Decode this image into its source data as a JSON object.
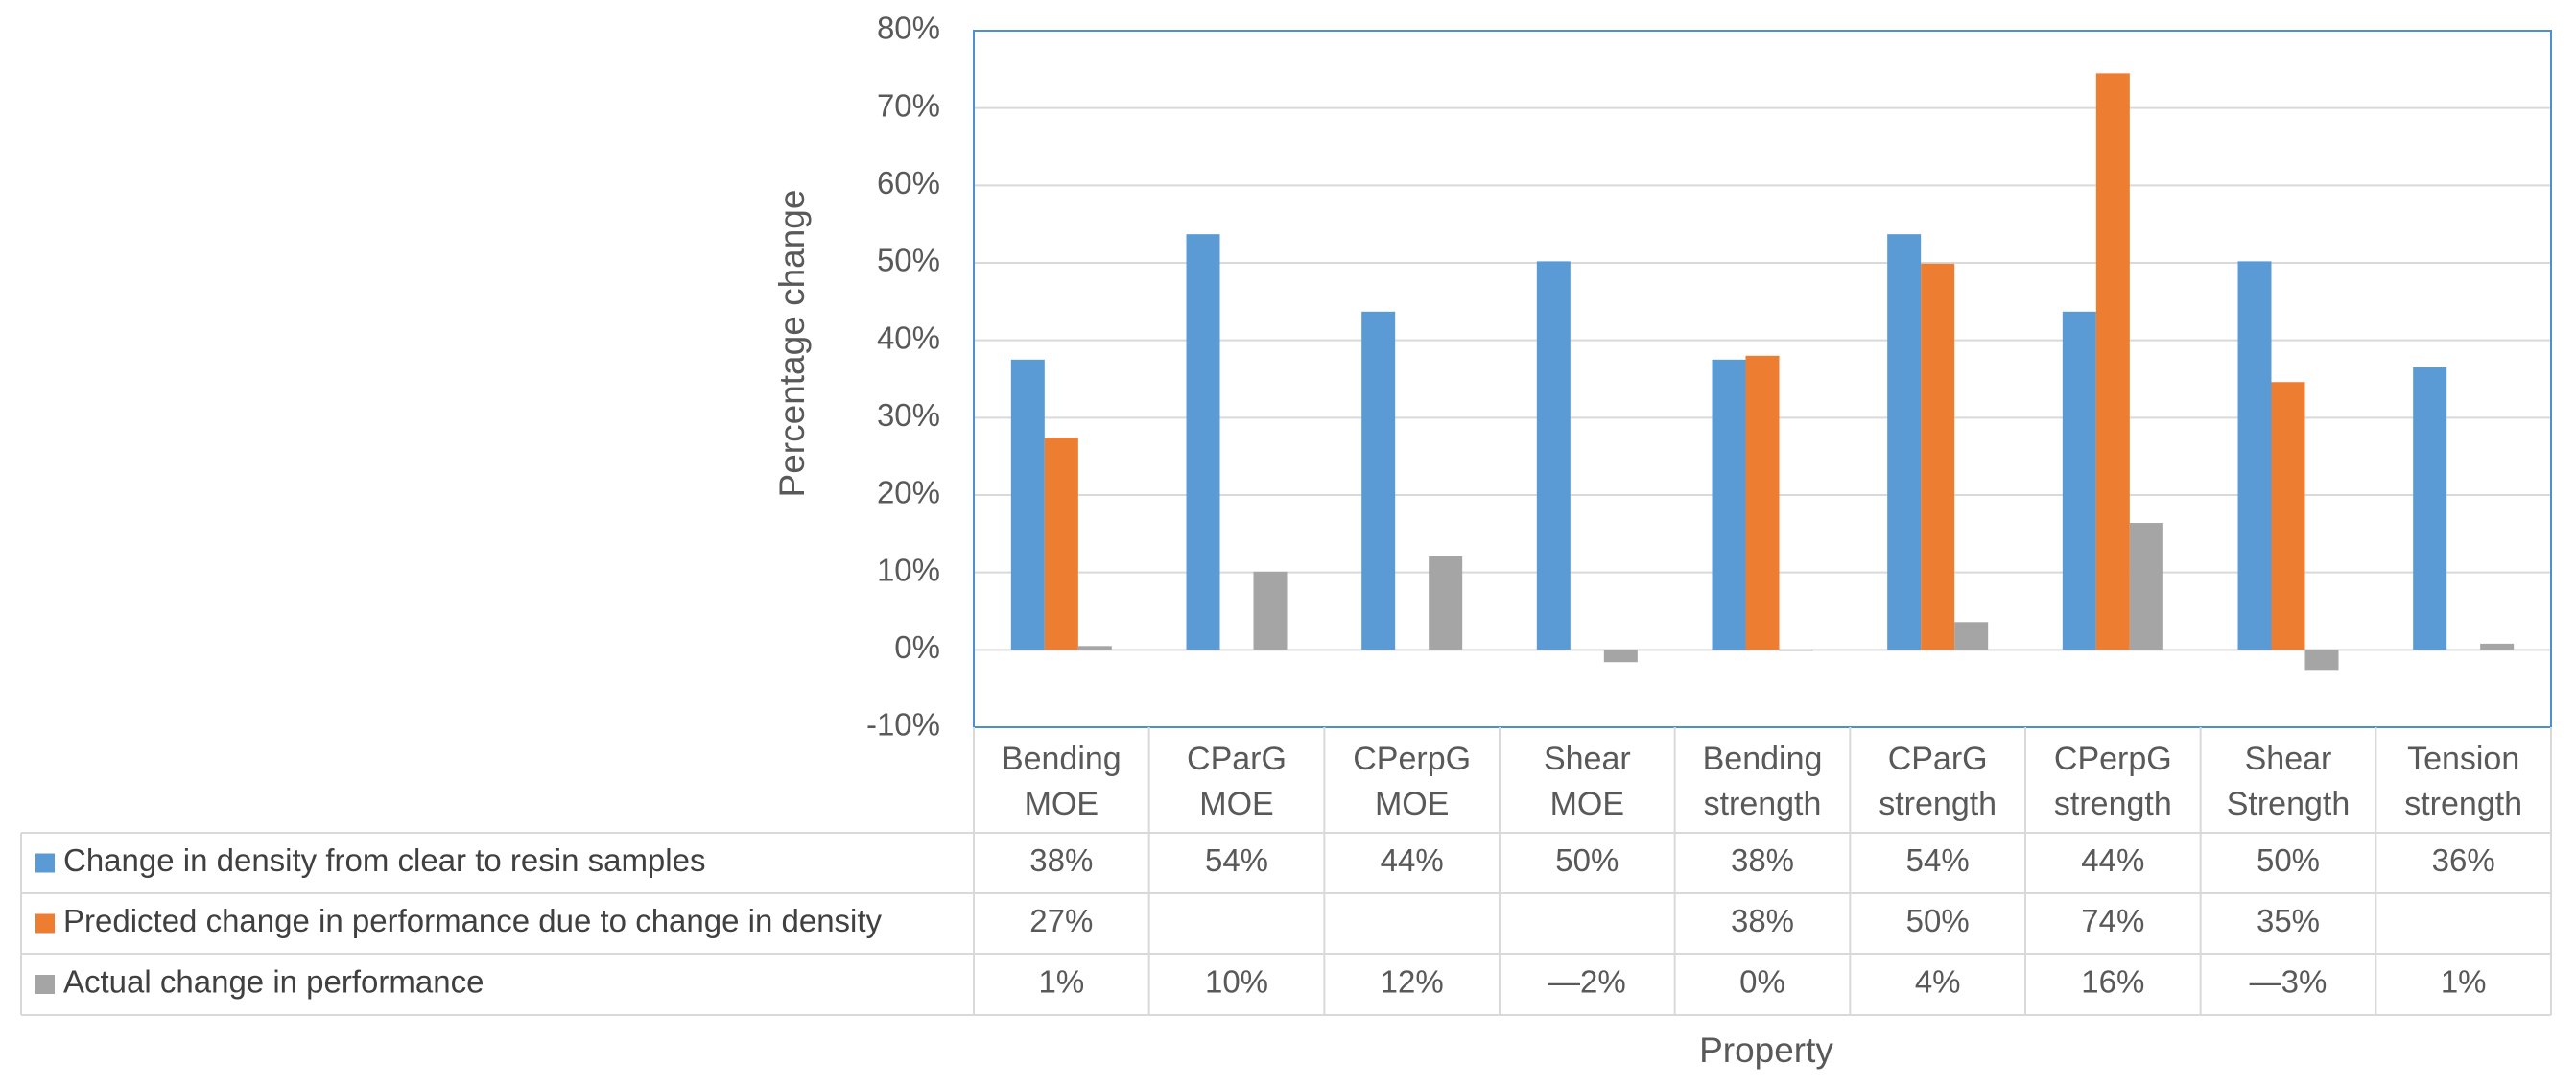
{
  "chart_data": {
    "type": "bar",
    "xlabel": "Property",
    "ylabel": "Percentage change",
    "ylim": [
      -10,
      80
    ],
    "ytick_step": 10,
    "grid": true,
    "legend": "data-table-left",
    "categories": [
      [
        "Bending",
        "MOE"
      ],
      [
        "CParG",
        "MOE"
      ],
      [
        "CPerpG",
        "MOE"
      ],
      [
        "Shear",
        "MOE"
      ],
      [
        "Bending",
        "strength"
      ],
      [
        "CParG",
        "strength"
      ],
      [
        "CPerpG",
        "strength"
      ],
      [
        "Shear",
        "Strength"
      ],
      [
        "Tension",
        "strength"
      ]
    ],
    "series": [
      {
        "name": "Change in density from clear to resin samples",
        "color": "#5B9BD5",
        "values": [
          37.5,
          53.7,
          43.7,
          50.2,
          37.5,
          53.7,
          43.7,
          50.2,
          36.5
        ],
        "labels": [
          "38%",
          "54%",
          "44%",
          "50%",
          "38%",
          "54%",
          "44%",
          "50%",
          "36%"
        ]
      },
      {
        "name": "Predicted change in performance due to change in density",
        "color": "#ED7D31",
        "values": [
          27.4,
          null,
          null,
          null,
          38.0,
          49.9,
          74.5,
          34.6,
          null
        ],
        "labels": [
          "27%",
          "",
          "",
          "",
          "38%",
          "50%",
          "74%",
          "35%",
          ""
        ]
      },
      {
        "name": "Actual change in performance",
        "color": "#A5A5A5",
        "values": [
          0.5,
          10.1,
          12.1,
          -1.6,
          0,
          3.6,
          16.4,
          -2.6,
          0.8
        ],
        "labels": [
          "1%",
          "10%",
          "12%",
          "—2%",
          "0%",
          "4%",
          "16%",
          "—3%",
          "1%"
        ]
      }
    ]
  }
}
